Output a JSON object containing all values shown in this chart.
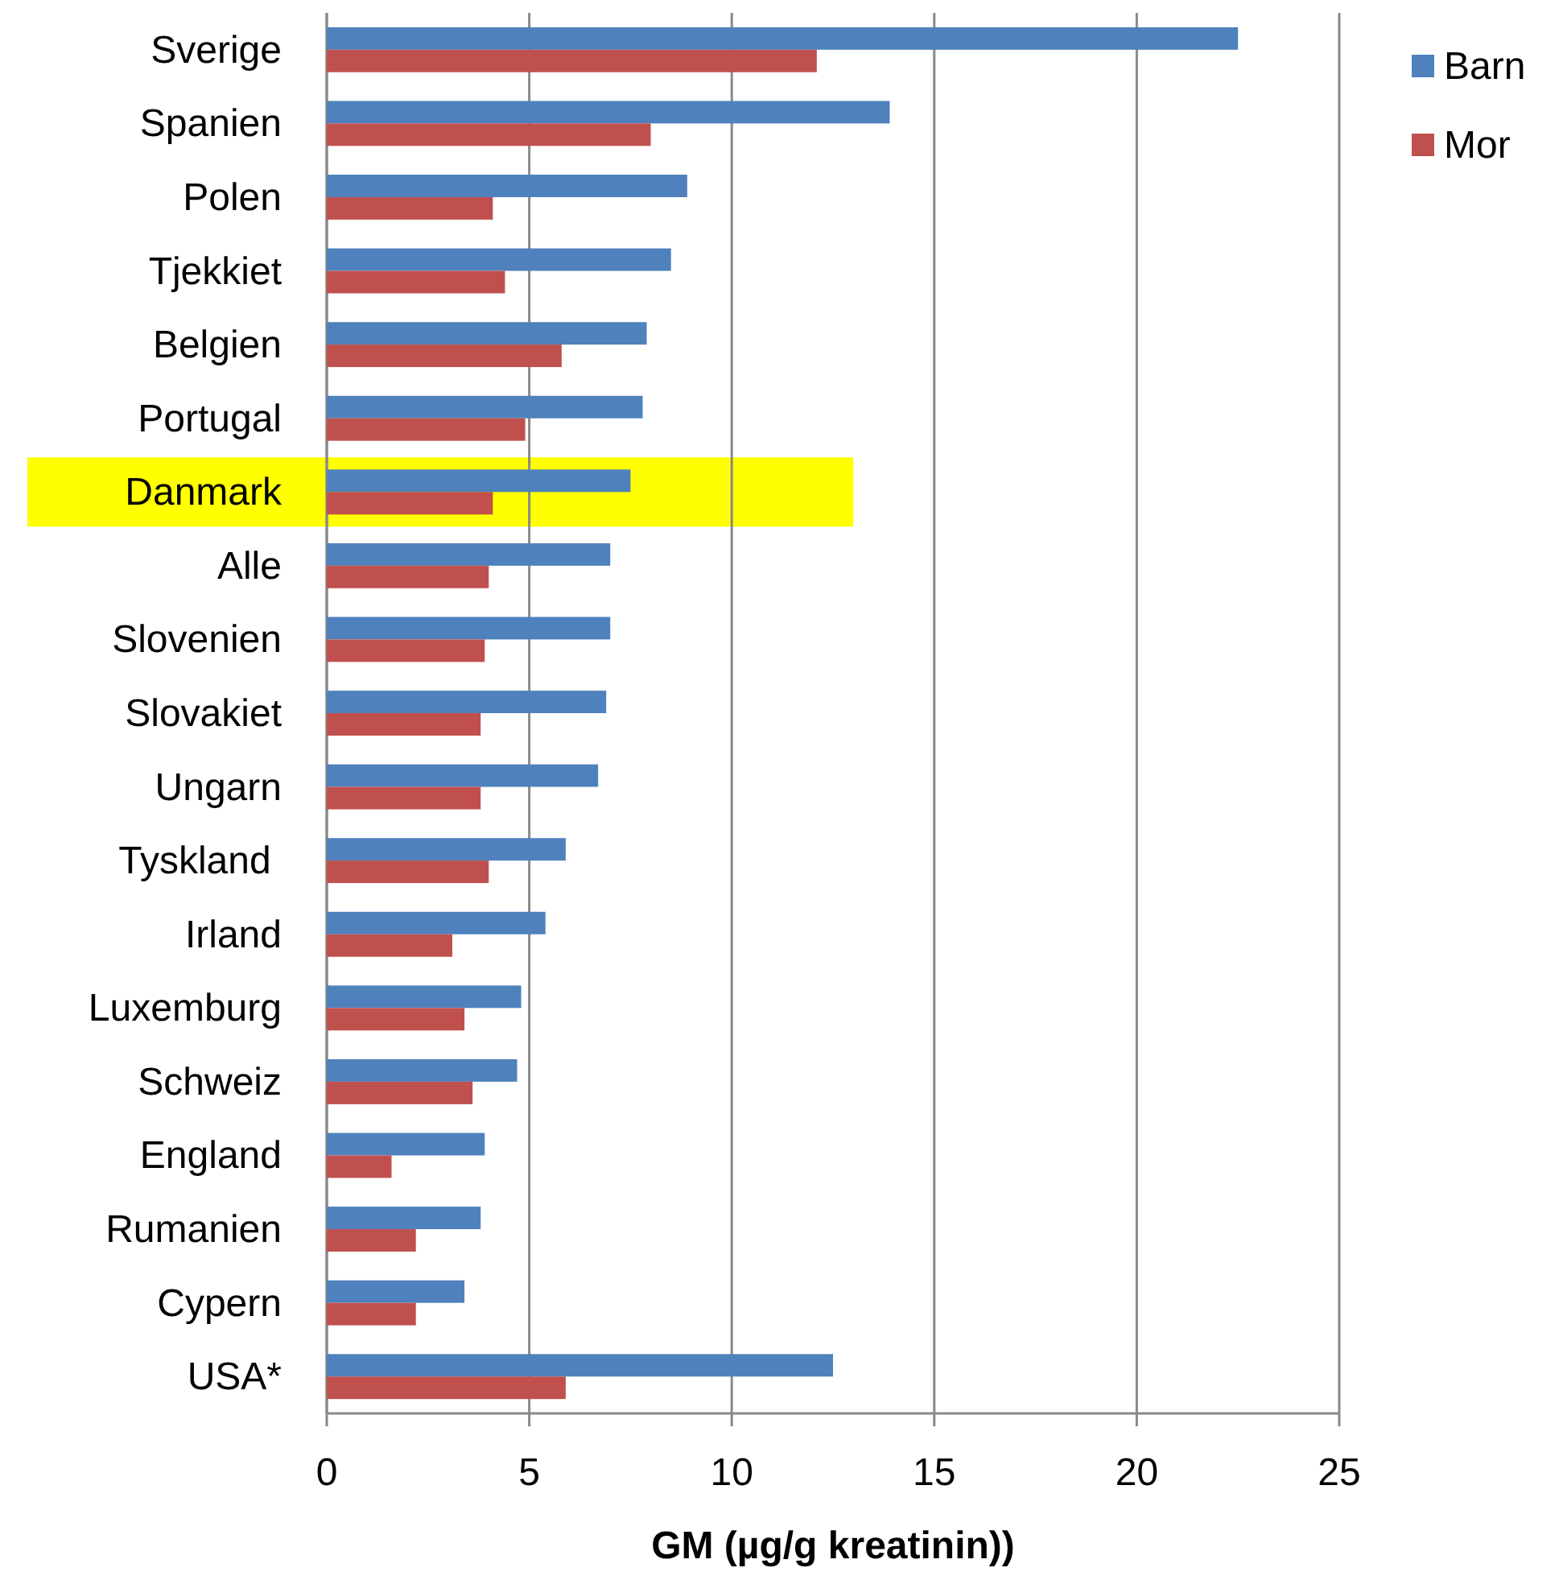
{
  "chart_data": {
    "type": "bar",
    "orientation": "horizontal",
    "xlabel": "GM (µg/g kreatinin))",
    "categories": [
      "Sverige",
      "Spanien",
      "Polen",
      "Tjekkiet",
      "Belgien",
      "Portugal",
      "Danmark",
      "Alle",
      "Slovenien",
      "Slovakiet",
      "Ungarn",
      "Tyskland ",
      "Irland",
      "Luxemburg",
      "Schweiz",
      "England",
      "Rumanien",
      "Cypern",
      "USA*"
    ],
    "series": [
      {
        "name": "Barn",
        "color": "#4f81bd",
        "values": [
          22.5,
          13.9,
          8.9,
          8.5,
          7.9,
          7.8,
          7.5,
          7.0,
          7.0,
          6.9,
          6.7,
          5.9,
          5.4,
          4.8,
          4.7,
          3.9,
          3.8,
          3.4,
          12.5
        ]
      },
      {
        "name": "Mor",
        "color": "#c0504d",
        "values": [
          12.1,
          8.0,
          4.1,
          4.4,
          5.8,
          4.9,
          4.1,
          4.0,
          3.9,
          3.8,
          3.8,
          4.0,
          3.1,
          3.4,
          3.6,
          1.6,
          2.2,
          2.2,
          5.9
        ]
      }
    ],
    "xlim": [
      0,
      25
    ],
    "xticks": [
      0,
      5,
      10,
      15,
      20,
      25
    ],
    "grid": "x",
    "legend": "top right",
    "bands": [
      {
        "axis": "y",
        "from": "Danmark",
        "to": "Danmark",
        "color": "#ffff00"
      }
    ]
  }
}
